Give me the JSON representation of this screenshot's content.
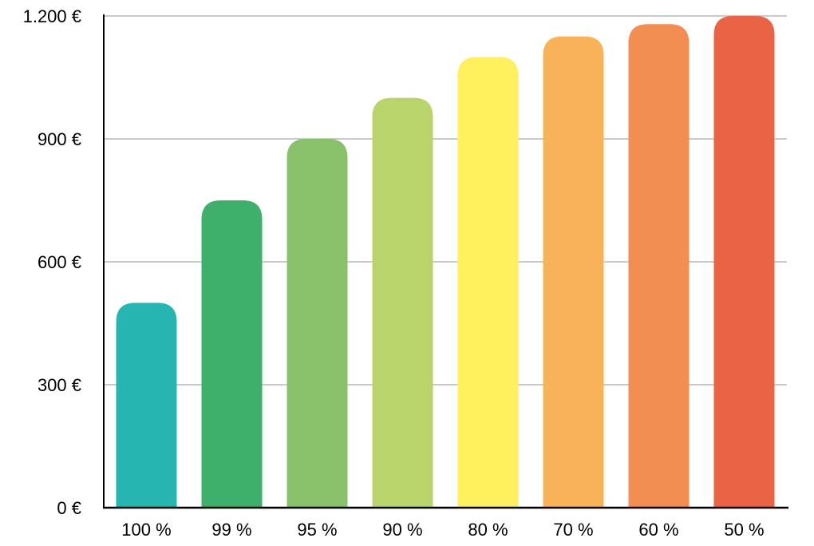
{
  "chart_data": {
    "type": "bar",
    "title": "",
    "xlabel": "",
    "ylabel": "",
    "categories": [
      "100 %",
      "99 %",
      "95 %",
      "90 %",
      "80 %",
      "70 %",
      "60 %",
      "50 %"
    ],
    "values": [
      500,
      750,
      900,
      1000,
      1100,
      1150,
      1180,
      1200
    ],
    "colors": [
      "#26b5b1",
      "#3eb06c",
      "#89c16b",
      "#b9d46a",
      "#fff060",
      "#f8b257",
      "#f28e51",
      "#eb6345"
    ],
    "ylim": [
      0,
      1200
    ],
    "yticks": [
      0,
      300,
      600,
      900,
      1200
    ],
    "ytick_labels": [
      "0 €",
      "300 €",
      "600 €",
      "900 €",
      "1.200 €"
    ],
    "grid": true,
    "legend": "none"
  }
}
